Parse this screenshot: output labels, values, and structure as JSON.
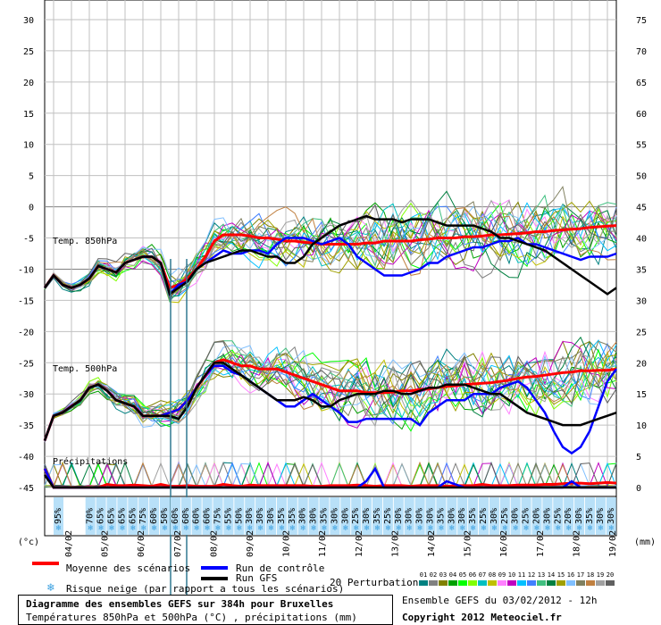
{
  "chart_data": {
    "type": "line",
    "title": "Diagramme des ensembles GEFS sur 384h pour Bruxelles",
    "subtitle": "Températures 850hPa et 500hPa (°C) , précipitations (mm)",
    "left_axis": {
      "label": "(°c)",
      "ticks": [
        30,
        25,
        20,
        15,
        10,
        5,
        0,
        -5,
        -10,
        -15,
        -20,
        -25,
        -30,
        -35,
        -40,
        -45
      ],
      "ylim": [
        -45,
        30
      ]
    },
    "right_axis": {
      "label": "(mm)",
      "ticks": [
        75,
        70,
        65,
        60,
        55,
        50,
        45,
        40,
        35,
        30,
        25,
        20,
        15,
        10,
        5,
        0
      ],
      "ylim": [
        0,
        75
      ]
    },
    "x_dates": [
      "04/02",
      "05/02",
      "06/02",
      "07/02",
      "08/02",
      "09/02",
      "10/02",
      "11/02",
      "12/02",
      "13/02",
      "14/02",
      "15/02",
      "16/02",
      "17/02",
      "18/02",
      "19/02"
    ],
    "panel_labels": {
      "t850": "Temp. 850hPa",
      "t500": "Temp. 500hPa",
      "precip": "Précipitations"
    },
    "x": [
      0,
      6,
      12,
      18,
      24,
      30,
      36,
      42,
      48,
      54,
      60,
      66,
      72,
      78,
      84,
      90,
      96,
      102,
      108,
      114,
      120,
      126,
      132,
      138,
      144,
      150,
      156,
      162,
      168,
      174,
      180,
      186,
      192,
      198,
      204,
      210,
      216,
      222,
      228,
      234,
      240,
      246,
      252,
      258,
      264,
      270,
      276,
      282,
      288,
      294,
      300,
      306,
      312,
      318,
      324,
      330,
      336,
      342,
      348,
      354,
      360,
      366,
      372,
      378,
      384
    ],
    "series": [
      {
        "name": "Moyenne des scénarios",
        "color": "#ff0000",
        "t850": [
          -13,
          -11,
          -12.5,
          -13,
          -12.5,
          -11.5,
          -9.5,
          -10,
          -10.5,
          -9,
          -8.5,
          -8,
          -8,
          -9,
          -13,
          -12.5,
          -11.5,
          -10,
          -8,
          -5.5,
          -4.5,
          -4.5,
          -4.5,
          -4.7,
          -5,
          -5,
          -5.2,
          -5.5,
          -5.5,
          -5.7,
          -5.8,
          -6,
          -6,
          -6,
          -6,
          -6,
          -5.8,
          -5.8,
          -5.5,
          -5.5,
          -5.5,
          -5.5,
          -5.3,
          -5.2,
          -5,
          -5,
          -5,
          -4.8,
          -4.8,
          -4.7,
          -4.5,
          -4.5,
          -4.4,
          -4.3,
          -4.2,
          -4,
          -4,
          -3.8,
          -3.7,
          -3.6,
          -3.5,
          -3.3,
          -3.2,
          -3.1,
          -3
        ],
        "t500": [
          -37.5,
          -33.5,
          -33,
          -32,
          -31,
          -29,
          -28.5,
          -29.5,
          -31,
          -31.5,
          -32,
          -33.5,
          -33.5,
          -33.5,
          -33,
          -32.5,
          -31,
          -29,
          -27,
          -25,
          -24.5,
          -25,
          -25.5,
          -25.5,
          -26,
          -26,
          -26,
          -26.5,
          -27,
          -27.5,
          -28,
          -28.5,
          -29,
          -29.5,
          -29.5,
          -29.5,
          -29.8,
          -29.8,
          -29.8,
          -29.7,
          -29.5,
          -29.5,
          -29.3,
          -29.2,
          -29,
          -28.8,
          -28.7,
          -28.5,
          -28.4,
          -28.3,
          -28.2,
          -28,
          -27.8,
          -27.5,
          -27.3,
          -27.2,
          -27,
          -26.8,
          -26.6,
          -26.5,
          -26.3,
          -26.3,
          -26.2,
          -26.2,
          -26
        ],
        "precip": [
          3,
          0,
          0,
          0,
          0,
          0,
          0,
          0.5,
          0.3,
          0.3,
          0.4,
          0.3,
          0.2,
          0.5,
          0.2,
          0.2,
          0.3,
          0.2,
          0.2,
          0.2,
          0.5,
          0.3,
          0.2,
          0.4,
          0.3,
          0.3,
          0.3,
          0.3,
          0.3,
          0.3,
          0.2,
          0.2,
          0.3,
          0.3,
          0.3,
          0.4,
          0.3,
          0.2,
          0.3,
          0.3,
          0.3,
          0.2,
          0.3,
          0.3,
          0.3,
          0.2,
          0.3,
          0.3,
          0.3,
          0.5,
          0.3,
          0.3,
          0.3,
          0.4,
          0.4,
          0.4,
          0.5,
          0.5,
          0.6,
          0.7,
          0.7,
          0.6,
          0.7,
          0.8,
          0.7
        ]
      },
      {
        "name": "Run de contrôle",
        "color": "#0000ff",
        "t850": [
          -13,
          -11,
          -12.5,
          -13,
          -12.5,
          -11.5,
          -9.5,
          -10,
          -10.5,
          -9,
          -8.5,
          -8,
          -8,
          -9,
          -14,
          -12.5,
          -12,
          -10,
          -9,
          -8,
          -7,
          -7.5,
          -7.5,
          -7,
          -7,
          -7.5,
          -6,
          -5,
          -5,
          -5,
          -5.5,
          -6,
          -5.5,
          -5,
          -6,
          -8,
          -9,
          -10,
          -11,
          -11,
          -11,
          -10.5,
          -10,
          -9,
          -9,
          -8,
          -7.5,
          -7,
          -6.5,
          -6.5,
          -6,
          -5.5,
          -5.5,
          -5,
          -6,
          -6,
          -6.5,
          -7,
          -7.5,
          -8,
          -8.5,
          -8,
          -8,
          -8,
          -7.5
        ],
        "t500": [
          -37.5,
          -33.5,
          -33,
          -32,
          -31,
          -29,
          -28.5,
          -29.5,
          -31,
          -31.5,
          -32,
          -33.5,
          -33.5,
          -33.5,
          -33,
          -32.5,
          -31,
          -29,
          -27,
          -25.5,
          -25.5,
          -26.5,
          -27,
          -28,
          -29,
          -30,
          -31,
          -32,
          -32,
          -31,
          -30,
          -31,
          -32,
          -33,
          -34.5,
          -34.5,
          -34,
          -34,
          -34,
          -34,
          -34,
          -34,
          -35,
          -33,
          -32,
          -31,
          -31,
          -31,
          -30,
          -30,
          -30,
          -29,
          -28.5,
          -28,
          -29,
          -31,
          -33,
          -36,
          -38.5,
          -39.5,
          -38.5,
          -36,
          -32,
          -28,
          -26
        ],
        "precip": [
          3,
          0,
          0,
          0,
          0,
          0,
          0,
          0,
          0,
          0,
          0,
          0,
          0,
          0,
          0,
          0,
          0,
          0,
          0,
          0,
          0,
          0,
          0,
          0,
          0,
          0,
          0,
          0,
          0,
          0,
          0,
          0,
          0,
          0,
          0,
          0,
          1,
          3,
          0,
          0,
          0,
          0,
          0,
          0,
          0,
          1,
          0.5,
          0,
          0,
          0,
          0,
          0,
          0,
          0,
          0,
          0,
          0,
          0,
          0,
          1,
          0,
          0,
          0,
          0,
          0
        ]
      },
      {
        "name": "Run GFS",
        "color": "#000000",
        "t850": [
          -13,
          -11,
          -12.5,
          -13,
          -12.5,
          -11.5,
          -9.5,
          -10,
          -10.5,
          -9,
          -8.5,
          -8,
          -8,
          -9,
          -14,
          -13,
          -12,
          -10,
          -9,
          -8.5,
          -8,
          -7.5,
          -7,
          -7,
          -7.5,
          -8,
          -8,
          -9,
          -9,
          -8,
          -6,
          -5,
          -4,
          -3,
          -2.5,
          -2,
          -1.5,
          -2,
          -2,
          -2,
          -2.5,
          -2,
          -2,
          -2,
          -2.5,
          -3,
          -3,
          -3,
          -3,
          -3.5,
          -4,
          -5,
          -5,
          -5.5,
          -6,
          -6.5,
          -7,
          -8,
          -9,
          -10,
          -11,
          -12,
          -13,
          -14,
          -13
        ],
        "t500": [
          -37.5,
          -33.5,
          -33,
          -32,
          -31,
          -29,
          -28.5,
          -29.5,
          -31,
          -31.5,
          -32,
          -33.5,
          -33.5,
          -33.5,
          -33.5,
          -34,
          -32,
          -29,
          -27,
          -25,
          -25,
          -26,
          -27,
          -28,
          -29,
          -30,
          -31,
          -31,
          -31,
          -30.5,
          -31,
          -32,
          -32,
          -31,
          -30.5,
          -30,
          -30,
          -30,
          -29.5,
          -29.5,
          -30,
          -30,
          -29.5,
          -29,
          -29,
          -28.5,
          -28.5,
          -28.5,
          -29,
          -29.5,
          -30,
          -30,
          -31,
          -32,
          -33,
          -33.5,
          -34,
          -34.5,
          -35,
          -35,
          -35,
          -34.5,
          -34,
          -33.5,
          -33
        ],
        "precip": [
          2,
          0,
          0,
          0,
          0,
          0,
          0,
          0,
          0,
          0,
          0,
          0,
          0,
          0,
          0,
          0,
          0,
          0,
          0,
          0,
          0,
          0,
          0,
          0,
          0,
          0,
          0,
          0,
          0,
          0,
          0,
          0,
          0,
          0,
          0,
          0,
          0,
          0,
          0,
          0,
          0,
          0,
          0,
          0,
          0,
          0,
          0,
          0,
          0,
          0,
          0,
          0,
          0,
          0,
          0,
          0,
          0,
          0,
          0,
          0,
          0,
          0,
          0,
          0,
          0
        ]
      }
    ],
    "perturbations": {
      "label": "20 Perturbations",
      "numbers": [
        "01",
        "02",
        "03",
        "04",
        "05",
        "06",
        "07",
        "08",
        "09",
        "10",
        "11",
        "12",
        "13",
        "14",
        "15",
        "16",
        "17",
        "18",
        "19",
        "20"
      ],
      "colors": [
        "#008080",
        "#808080",
        "#808000",
        "#00a000",
        "#00ff00",
        "#80ff00",
        "#00c0c0",
        "#c0c000",
        "#ff80ff",
        "#c000c0",
        "#00c0ff",
        "#4080ff",
        "#40c080",
        "#008040",
        "#a0a000",
        "#80c0ff",
        "#808060",
        "#c08040",
        "#a0a0a0",
        "#606060"
      ]
    },
    "snow_risk": [
      "95%",
      "",
      "",
      "70%",
      "65%",
      "65%",
      "65%",
      "65%",
      "75%",
      "60%",
      "50%",
      "60%",
      "60%",
      "60%",
      "60%",
      "75%",
      "55%",
      "50%",
      "30%",
      "30%",
      "30%",
      "35%",
      "35%",
      "30%",
      "30%",
      "35%",
      "30%",
      "30%",
      "25%",
      "30%",
      "35%",
      "25%",
      "30%",
      "30%",
      "30%",
      "30%",
      "35%",
      "30%",
      "30%",
      "35%",
      "25%",
      "30%",
      "25%",
      "30%",
      "25%",
      "20%",
      "30%",
      "25%",
      "20%",
      "30%",
      "35%",
      "30%",
      "30%"
    ],
    "legend": {
      "mean": "Moyenne des scénarios",
      "control": "Run de contrôle",
      "gfs": "Run GFS",
      "snow": "Risque neige (par rapport a tous les scénarios)",
      "ensemble": "Ensemble GEFS du 03/02/2012 - 12h",
      "copyright": "Copyright 2012 Meteociel.fr"
    }
  }
}
